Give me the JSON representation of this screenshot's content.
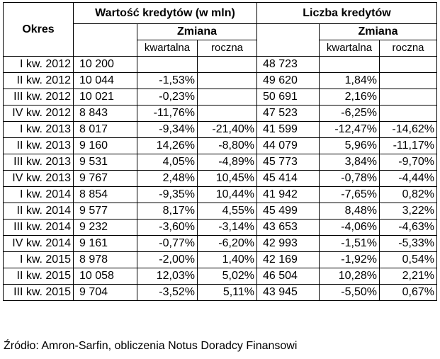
{
  "headers": {
    "okres": "Okres",
    "value_group": "Wartość kredytów (w mln)",
    "count_group": "Liczba kredytów",
    "change": "Zmiana",
    "quarterly": "kwartalna",
    "yearly": "roczna"
  },
  "rows": [
    {
      "period": "I kw. 2012",
      "value": "10 200",
      "v_q": "",
      "v_y": "",
      "count": "48 723",
      "c_q": "",
      "c_y": ""
    },
    {
      "period": "II kw. 2012",
      "value": "10 044",
      "v_q": "-1,53%",
      "v_y": "",
      "count": "49 620",
      "c_q": "1,84%",
      "c_y": ""
    },
    {
      "period": "III kw. 2012",
      "value": "10 021",
      "v_q": "-0,23%",
      "v_y": "",
      "count": "50 691",
      "c_q": "2,16%",
      "c_y": ""
    },
    {
      "period": "IV kw. 2012",
      "value": "8 843",
      "v_q": "-11,76%",
      "v_y": "",
      "count": "47 523",
      "c_q": "-6,25%",
      "c_y": ""
    },
    {
      "period": "I kw. 2013",
      "value": "8 017",
      "v_q": "-9,34%",
      "v_y": "-21,40%",
      "count": "41 599",
      "c_q": "-12,47%",
      "c_y": "-14,62%"
    },
    {
      "period": "II kw. 2013",
      "value": "9 160",
      "v_q": "14,26%",
      "v_y": "-8,80%",
      "count": "44 079",
      "c_q": "5,96%",
      "c_y": "-11,17%"
    },
    {
      "period": "III kw. 2013",
      "value": "9 531",
      "v_q": "4,05%",
      "v_y": "-4,89%",
      "count": "45 773",
      "c_q": "3,84%",
      "c_y": "-9,70%"
    },
    {
      "period": "IV kw. 2013",
      "value": "9 767",
      "v_q": "2,48%",
      "v_y": "10,45%",
      "count": "45 414",
      "c_q": "-0,78%",
      "c_y": "-4,44%"
    },
    {
      "period": "I kw. 2014",
      "value": "8 854",
      "v_q": "-9,35%",
      "v_y": "10,44%",
      "count": "41 942",
      "c_q": "-7,65%",
      "c_y": "0,82%"
    },
    {
      "period": "II kw. 2014",
      "value": "9 577",
      "v_q": "8,17%",
      "v_y": "4,55%",
      "count": "45 499",
      "c_q": "8,48%",
      "c_y": "3,22%"
    },
    {
      "period": "III kw. 2014",
      "value": "9 232",
      "v_q": "-3,60%",
      "v_y": "-3,14%",
      "count": "43 653",
      "c_q": "-4,06%",
      "c_y": "-4,63%"
    },
    {
      "period": "IV kw. 2014",
      "value": "9 161",
      "v_q": "-0,77%",
      "v_y": "-6,20%",
      "count": "42 993",
      "c_q": "-1,51%",
      "c_y": "-5,33%"
    },
    {
      "period": "I kw. 2015",
      "value": "8 978",
      "v_q": "-2,00%",
      "v_y": "1,40%",
      "count": "42 169",
      "c_q": "-1,92%",
      "c_y": "0,54%"
    },
    {
      "period": "II kw. 2015",
      "value": "10 058",
      "v_q": "12,03%",
      "v_y": "5,02%",
      "count": "46 504",
      "c_q": "10,28%",
      "c_y": "2,21%"
    },
    {
      "period": "III kw. 2015",
      "value": "9 704",
      "v_q": "-3,52%",
      "v_y": "5,11%",
      "count": "43 945",
      "c_q": "-5,50%",
      "c_y": "0,67%"
    }
  ],
  "source": "Źródło: Amron-Sarfin, obliczenia Notus Doradcy Finansowi"
}
